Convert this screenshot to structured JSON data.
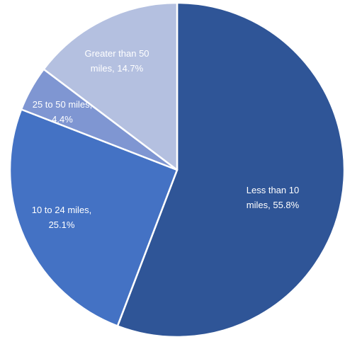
{
  "chart_data": {
    "type": "pie",
    "title": "",
    "slices": [
      {
        "label_line1": "Less than 10",
        "label_line2": "miles, 55.8%",
        "value": 55.8,
        "color": "#2f5597"
      },
      {
        "label_line1": "10 to 24 miles,",
        "label_line2": "25.1%",
        "value": 25.1,
        "color": "#4472c4"
      },
      {
        "label_line1": "25 to 50 miles,",
        "label_line2": "4.4%",
        "value": 4.4,
        "color": "#7f96d2"
      },
      {
        "label_line1": "Greater than 50",
        "label_line2": "miles, 14.7%",
        "value": 14.7,
        "color": "#b4c0e0"
      }
    ],
    "legend": "none",
    "start_angle_deg": 0,
    "direction": "clockwise"
  }
}
